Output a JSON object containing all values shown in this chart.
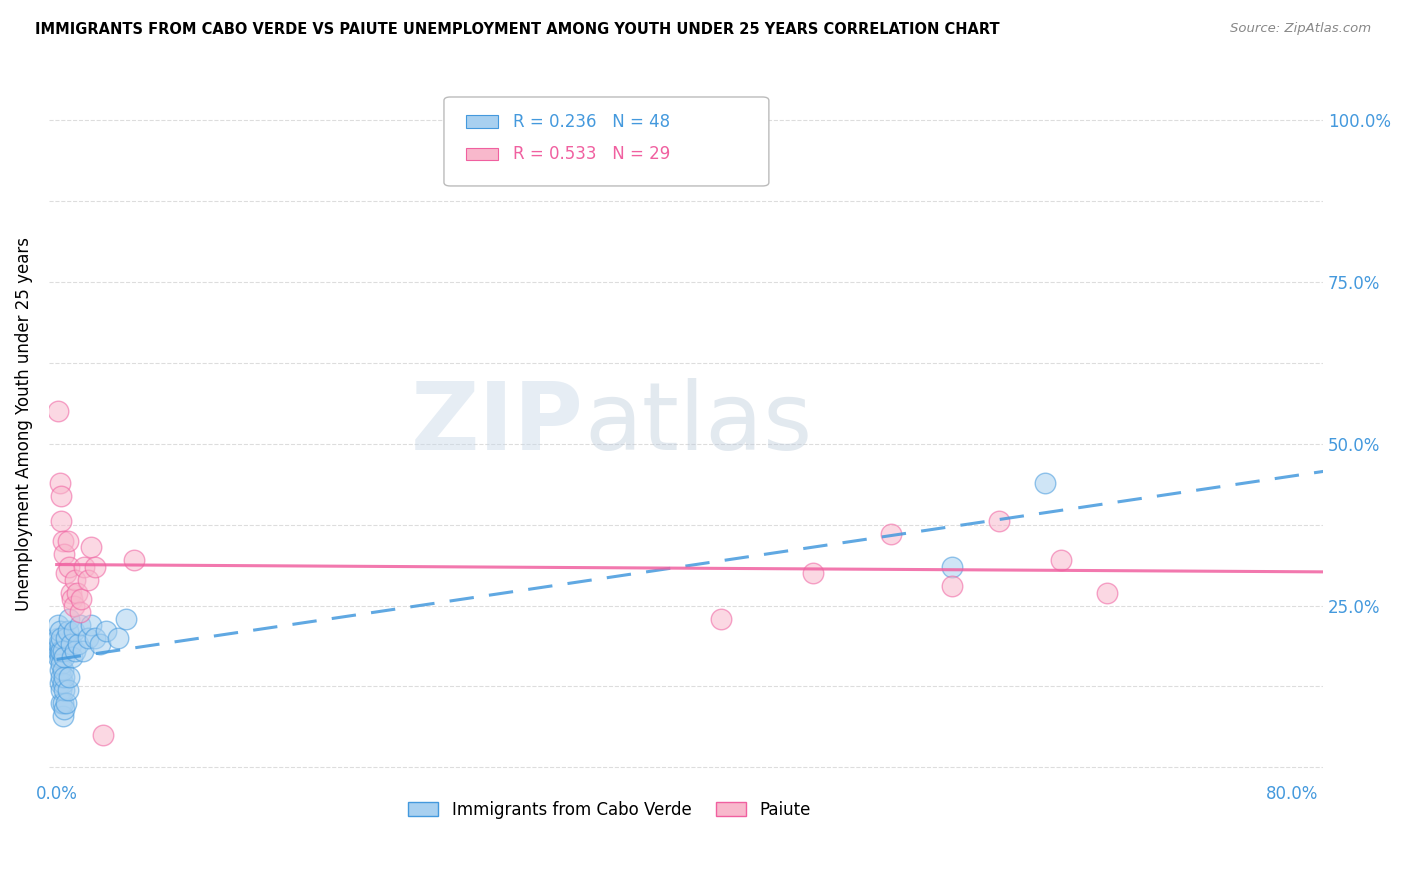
{
  "title": "IMMIGRANTS FROM CABO VERDE VS PAIUTE UNEMPLOYMENT AMONG YOUTH UNDER 25 YEARS CORRELATION CHART",
  "source": "Source: ZipAtlas.com",
  "ylabel": "Unemployment Among Youth under 25 years",
  "legend_label1": "Immigrants from Cabo Verde",
  "legend_label2": "Paiute",
  "legend_R1": "R = 0.236",
  "legend_N1": "N = 48",
  "legend_R2": "R = 0.533",
  "legend_N2": "N = 29",
  "color_blue": "#A8D0F0",
  "color_pink": "#F8B8CC",
  "color_blue_line": "#4499DD",
  "color_pink_line": "#F060A0",
  "watermark_zip": "ZIP",
  "watermark_atlas": "atlas",
  "cabo_verde_x": [
    0.001,
    0.001,
    0.001,
    0.001,
    0.001,
    0.002,
    0.002,
    0.002,
    0.002,
    0.002,
    0.002,
    0.003,
    0.003,
    0.003,
    0.003,
    0.003,
    0.003,
    0.004,
    0.004,
    0.004,
    0.004,
    0.004,
    0.005,
    0.005,
    0.005,
    0.005,
    0.006,
    0.006,
    0.007,
    0.007,
    0.008,
    0.008,
    0.009,
    0.01,
    0.011,
    0.012,
    0.014,
    0.015,
    0.017,
    0.02,
    0.022,
    0.025,
    0.028,
    0.032,
    0.04,
    0.045,
    0.58,
    0.64
  ],
  "cabo_verde_y": [
    0.17,
    0.18,
    0.19,
    0.2,
    0.22,
    0.13,
    0.15,
    0.17,
    0.18,
    0.19,
    0.21,
    0.1,
    0.12,
    0.14,
    0.16,
    0.18,
    0.2,
    0.08,
    0.1,
    0.13,
    0.15,
    0.18,
    0.09,
    0.12,
    0.14,
    0.17,
    0.1,
    0.2,
    0.12,
    0.21,
    0.14,
    0.23,
    0.19,
    0.17,
    0.21,
    0.18,
    0.19,
    0.22,
    0.18,
    0.2,
    0.22,
    0.2,
    0.19,
    0.21,
    0.2,
    0.23,
    0.31,
    0.44
  ],
  "paiute_x": [
    0.001,
    0.002,
    0.003,
    0.003,
    0.004,
    0.005,
    0.006,
    0.007,
    0.008,
    0.009,
    0.01,
    0.011,
    0.012,
    0.013,
    0.015,
    0.016,
    0.018,
    0.02,
    0.022,
    0.025,
    0.03,
    0.05,
    0.43,
    0.49,
    0.54,
    0.58,
    0.61,
    0.65,
    0.68
  ],
  "paiute_y": [
    0.55,
    0.44,
    0.42,
    0.38,
    0.35,
    0.33,
    0.3,
    0.35,
    0.31,
    0.27,
    0.26,
    0.25,
    0.29,
    0.27,
    0.24,
    0.26,
    0.31,
    0.29,
    0.34,
    0.31,
    0.05,
    0.32,
    0.23,
    0.3,
    0.36,
    0.28,
    0.38,
    0.32,
    0.27
  ],
  "xlim": [
    -0.005,
    0.82
  ],
  "ylim": [
    -0.02,
    1.08
  ],
  "yticks": [
    0.0,
    0.125,
    0.25,
    0.375,
    0.5,
    0.625,
    0.75,
    0.875,
    1.0
  ],
  "ytick_labels_right": [
    "",
    "",
    "25.0%",
    "",
    "50.0%",
    "",
    "75.0%",
    "",
    "100.0%"
  ],
  "xticks": [
    0.0,
    0.1,
    0.2,
    0.3,
    0.4,
    0.5,
    0.6,
    0.7,
    0.8
  ],
  "xtick_labels": [
    "0.0%",
    "",
    "",
    "",
    "",
    "",
    "",
    "",
    "80.0%"
  ]
}
